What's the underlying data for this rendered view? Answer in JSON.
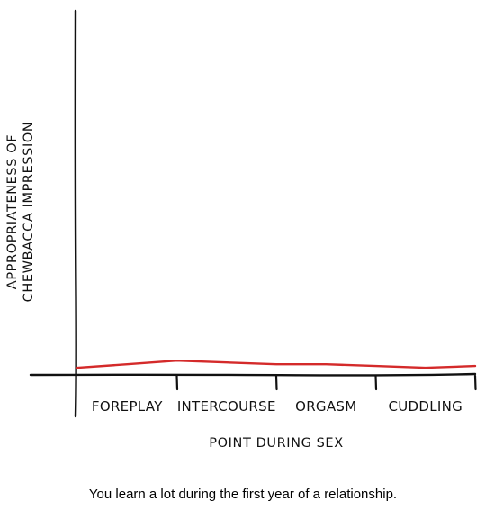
{
  "chart_data": {
    "type": "line",
    "title": "",
    "xlabel": "POINT DURING SEX",
    "ylabel_lines": [
      "APPROPRIATENESS OF",
      "CHEWBACCA IMPRESSION"
    ],
    "categories": [
      "FOREPLAY",
      "INTERCOURSE",
      "ORGASM",
      "CUDDLING"
    ],
    "x": [
      0,
      0.5,
      1,
      1.5,
      2,
      2.5,
      3,
      3.5,
      4
    ],
    "values": [
      0.01,
      0.02,
      0.03,
      0.025,
      0.02,
      0.02,
      0.015,
      0.01,
      0.015
    ],
    "ylim": [
      0,
      1
    ],
    "xlim": [
      0,
      4
    ],
    "grid": false,
    "line_color": "#d42a2a",
    "axis_color": "#111111"
  },
  "caption": "You learn a lot during the first year of a relationship."
}
